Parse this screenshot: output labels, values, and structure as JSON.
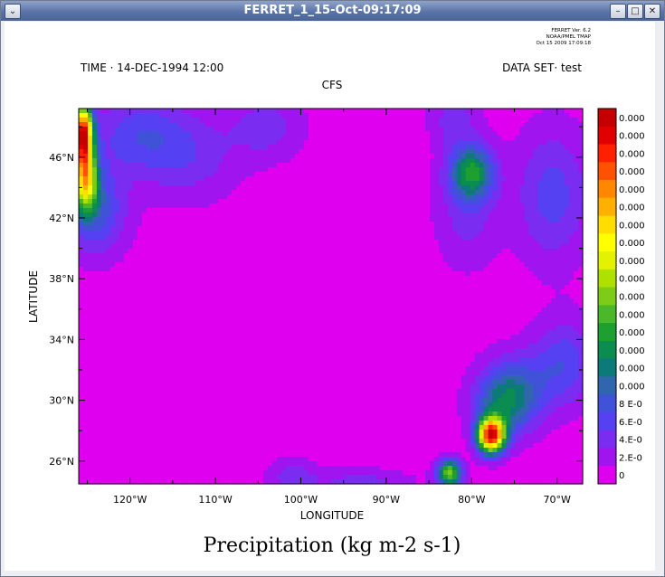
{
  "window": {
    "title": "FERRET_1_15-Oct-09:17:09",
    "menu_glyph": "⌄",
    "minimize_glyph": "–",
    "maximize_glyph": "□",
    "close_glyph": "✕"
  },
  "ferret_info": [
    "FERRET Ver. 6.2",
    "NOAA/PMEL TMAP",
    "Oct 15 2009 17:09:18"
  ],
  "header": {
    "time": "TIME · 14-DEC-1994 12:00",
    "dataset": "DATA SET· test",
    "subtitle": "CFS"
  },
  "chart_data": {
    "type": "heatmap",
    "title": "Precipitation (kg m-2 s-1)",
    "xlabel": "LONGITUDE",
    "ylabel": "LATITUDE",
    "xlim": [
      -126,
      -67
    ],
    "ylim": [
      24.5,
      49.2
    ],
    "x_ticks": [
      {
        "value": -120,
        "label": "120°W"
      },
      {
        "value": -110,
        "label": "110°W"
      },
      {
        "value": -100,
        "label": "100°W"
      },
      {
        "value": -90,
        "label": "90°W"
      },
      {
        "value": -80,
        "label": "80°W"
      },
      {
        "value": -70,
        "label": "70°W"
      }
    ],
    "y_ticks": [
      {
        "value": 26,
        "label": "26°N"
      },
      {
        "value": 30,
        "label": "30°N"
      },
      {
        "value": 34,
        "label": "34°N"
      },
      {
        "value": 38,
        "label": "38°N"
      },
      {
        "value": 42,
        "label": "42°N"
      },
      {
        "value": 46,
        "label": "46°N"
      }
    ],
    "background_level": 0,
    "features": [
      {
        "lon": -125.5,
        "lat": 47.5,
        "peak": 19,
        "sx": 0.8,
        "sy": 1.4
      },
      {
        "lon": -125.2,
        "lat": 44.5,
        "peak": 12,
        "sx": 1.0,
        "sy": 1.4
      },
      {
        "lon": -124.0,
        "lat": 42.5,
        "peak": 4,
        "sx": 2.5,
        "sy": 2.0
      },
      {
        "lon": -119,
        "lat": 47.5,
        "peak": 3,
        "sx": 4,
        "sy": 1.8
      },
      {
        "lon": -113,
        "lat": 46,
        "peak": 2,
        "sx": 4,
        "sy": 2
      },
      {
        "lon": -104,
        "lat": 48,
        "peak": 2,
        "sx": 3,
        "sy": 1.5
      },
      {
        "lon": -80.0,
        "lat": 45.0,
        "peak": 7,
        "sx": 1.8,
        "sy": 1.2
      },
      {
        "lon": -80.5,
        "lat": 42.5,
        "peak": 2,
        "sx": 2.5,
        "sy": 2.5
      },
      {
        "lon": -70.5,
        "lat": 43.5,
        "peak": 3,
        "sx": 3,
        "sy": 3
      },
      {
        "lon": -82,
        "lat": 48.5,
        "peak": 2,
        "sx": 2,
        "sy": 1.3
      },
      {
        "lon": -77.7,
        "lat": 27.7,
        "peak": 19,
        "sx": 1.1,
        "sy": 0.8
      },
      {
        "lon": -76,
        "lat": 29.8,
        "peak": 6,
        "sx": 2.5,
        "sy": 1.5
      },
      {
        "lon": -82.6,
        "lat": 25.2,
        "peak": 10,
        "sx": 1.0,
        "sy": 0.6
      },
      {
        "lon": -69,
        "lat": 32.5,
        "peak": 3,
        "sx": 2.5,
        "sy": 2
      },
      {
        "lon": -74,
        "lat": 31.5,
        "peak": 2,
        "sx": 3,
        "sy": 1.5
      },
      {
        "lon": -101,
        "lat": 25,
        "peak": 2,
        "sx": 2,
        "sy": 0.8
      },
      {
        "lon": -93,
        "lat": 24.6,
        "peak": 2,
        "sx": 4,
        "sy": 0.6
      }
    ],
    "colorbar": {
      "labels": [
        "0.000",
        "0.000",
        "0.000",
        "0.000",
        "0.000",
        "0.000",
        "0.000",
        "0.000",
        "0.000",
        "0.000",
        "0.000",
        "0.000",
        "0.000",
        "0.000",
        "0.000",
        "0.000",
        "8 E-0",
        "6.E-0",
        "4.E-0",
        "2.E-0",
        "0"
      ],
      "colors": [
        "#c40000",
        "#e00000",
        "#ff2000",
        "#ff5200",
        "#ff8800",
        "#ffb000",
        "#ffdd00",
        "#ffff00",
        "#e2f200",
        "#aee000",
        "#7ccc18",
        "#4ab82a",
        "#1ea030",
        "#0b8c50",
        "#0c7a78",
        "#2f66ad",
        "#3f52d8",
        "#5540f2",
        "#7a2cf0",
        "#a014f0",
        "#e000f0"
      ]
    }
  }
}
